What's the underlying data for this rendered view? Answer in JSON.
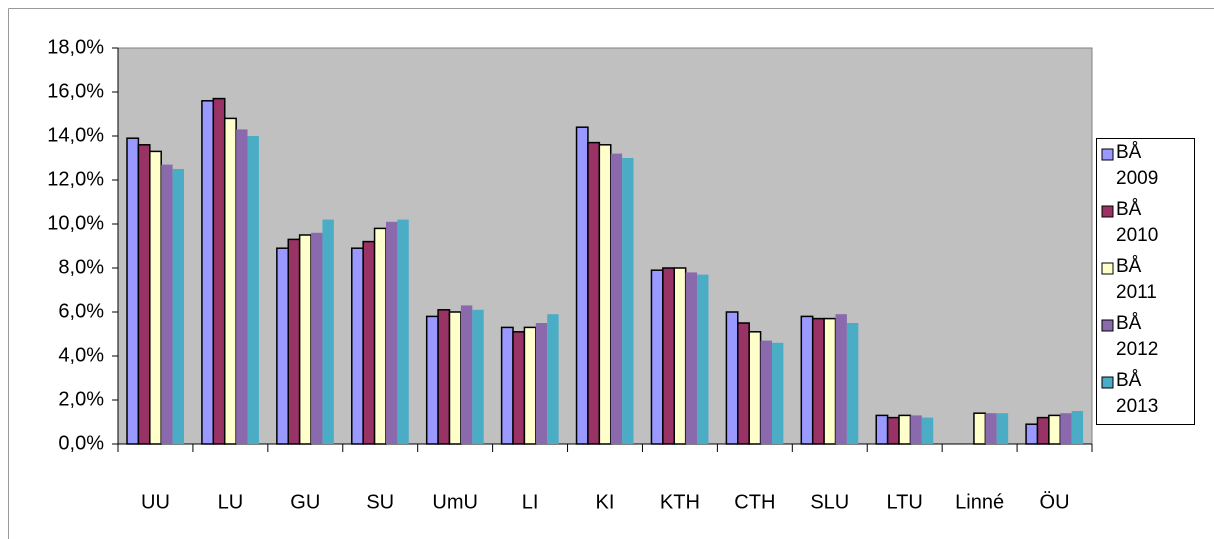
{
  "chart_data": {
    "type": "bar",
    "categories": [
      "UU",
      "LU",
      "GU",
      "SU",
      "UmU",
      "LI",
      "KI",
      "KTH",
      "CTH",
      "SLU",
      "LTU",
      "Linné",
      "ÖU"
    ],
    "series": [
      {
        "name": "BÅ 2009",
        "color": "#9999ff",
        "values": [
          13.9,
          15.6,
          8.9,
          8.9,
          5.8,
          5.3,
          14.4,
          7.9,
          6.0,
          5.8,
          1.3,
          null,
          0.9
        ]
      },
      {
        "name": "BÅ 2010",
        "color": "#993366",
        "values": [
          13.6,
          15.7,
          9.3,
          9.2,
          6.1,
          5.1,
          13.7,
          8.0,
          5.5,
          5.7,
          1.2,
          null,
          1.2
        ]
      },
      {
        "name": "BÅ 2011",
        "color": "#ffffcc",
        "values": [
          13.3,
          14.8,
          9.5,
          9.8,
          6.0,
          5.3,
          13.6,
          8.0,
          5.1,
          5.7,
          1.3,
          1.4,
          1.3
        ]
      },
      {
        "name": "BÅ 2012",
        "color": "#8a6aac",
        "values": [
          12.7,
          14.3,
          9.6,
          10.1,
          6.3,
          5.5,
          13.2,
          7.8,
          4.7,
          5.9,
          1.3,
          1.4,
          1.4
        ]
      },
      {
        "name": "BÅ 2013",
        "color": "#4bacc6",
        "values": [
          12.5,
          14.0,
          10.2,
          10.2,
          6.1,
          5.9,
          13.0,
          7.7,
          4.6,
          5.5,
          1.2,
          1.4,
          1.5
        ]
      }
    ],
    "ylim": [
      0,
      18
    ],
    "yticks": [
      {
        "value": 0,
        "label": "0,0%"
      },
      {
        "value": 2,
        "label": "2,0%"
      },
      {
        "value": 4,
        "label": "4,0%"
      },
      {
        "value": 6,
        "label": "6,0%"
      },
      {
        "value": 8,
        "label": "8,0%"
      },
      {
        "value": 10,
        "label": "10,0%"
      },
      {
        "value": 12,
        "label": "12,0%"
      },
      {
        "value": 14,
        "label": "14,0%"
      },
      {
        "value": 16,
        "label": "16,0%"
      },
      {
        "value": 18,
        "label": "18,0%"
      }
    ],
    "legend": "right"
  }
}
